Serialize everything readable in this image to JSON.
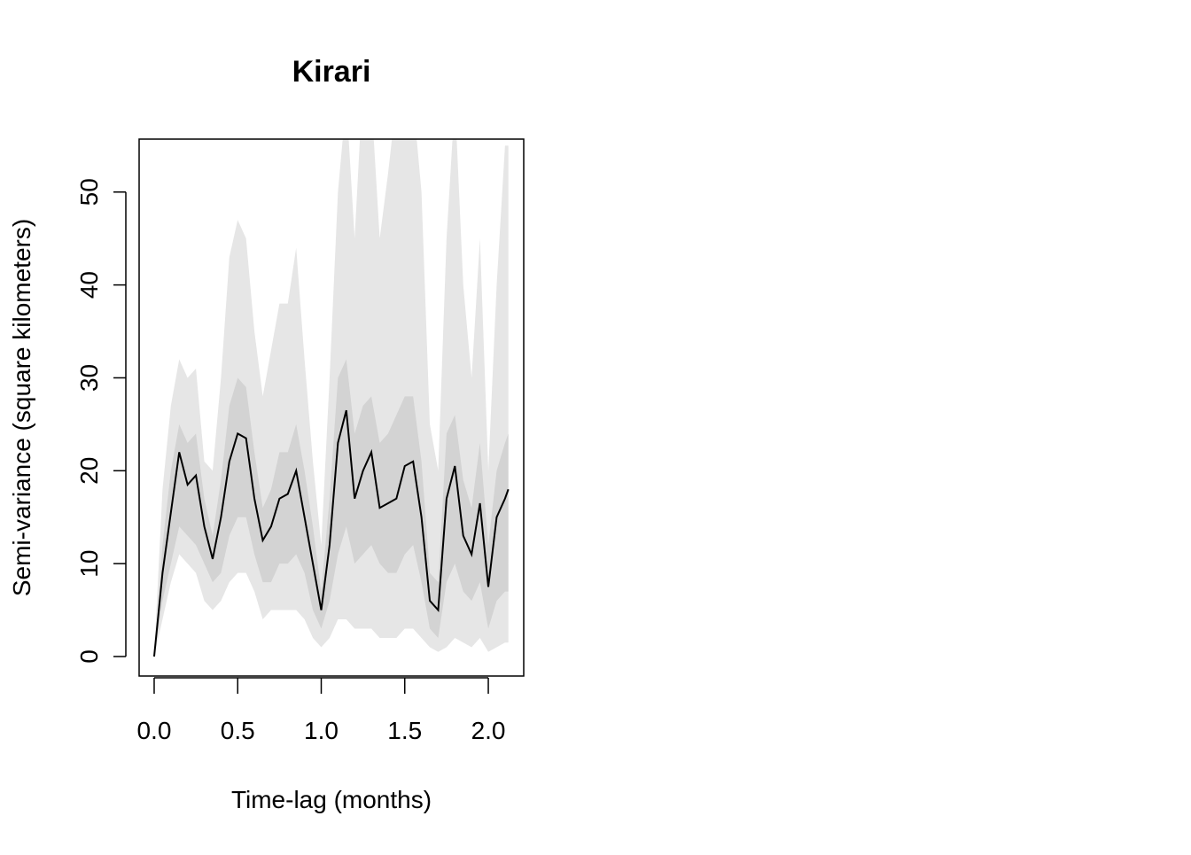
{
  "chart_data": {
    "type": "line",
    "title": "Kirari",
    "x_label": "Time-lag (months)",
    "y_label": "Semi-variance (square kilometers)",
    "x": [
      0,
      0.05,
      0.1,
      0.15,
      0.2,
      0.25,
      0.3,
      0.35,
      0.4,
      0.45,
      0.5,
      0.55,
      0.6,
      0.65,
      0.7,
      0.75,
      0.8,
      0.85,
      0.9,
      0.95,
      1.0,
      1.05,
      1.1,
      1.15,
      1.2,
      1.25,
      1.3,
      1.35,
      1.4,
      1.45,
      1.5,
      1.55,
      1.6,
      1.65,
      1.7,
      1.75,
      1.8,
      1.85,
      1.9,
      1.95,
      2.0,
      2.05,
      2.1,
      2.12
    ],
    "values": [
      0,
      9,
      15.5,
      22,
      18.5,
      19.5,
      14,
      10.5,
      15,
      21,
      24,
      23.5,
      17,
      12.5,
      14,
      17,
      17.5,
      20,
      15,
      10,
      5,
      12,
      23,
      26.5,
      17,
      20,
      22,
      16,
      16.5,
      17,
      20.5,
      21,
      15,
      6,
      5,
      17,
      20.5,
      13,
      11,
      16.5,
      7.5,
      15,
      17,
      18
    ],
    "color": "#000000",
    "bands": [
      {
        "color": "#e6e6e6",
        "lower": [
          0,
          4,
          8,
          11,
          10,
          9,
          6,
          5,
          6,
          8,
          9,
          9,
          7,
          4,
          5,
          5,
          5,
          5,
          4,
          2,
          1,
          2,
          4,
          4,
          3,
          3,
          3,
          2,
          2,
          2,
          3,
          3,
          2,
          1,
          0.5,
          1,
          2,
          1.5,
          1,
          2,
          0.5,
          1,
          1.5,
          1.5
        ],
        "upper": [
          0,
          18,
          27,
          32,
          30,
          31,
          21,
          20,
          30,
          43,
          47,
          45,
          35,
          28,
          33,
          38,
          38,
          44,
          32,
          21,
          12,
          30,
          50,
          60,
          45,
          62,
          60,
          45,
          52,
          60,
          62,
          60,
          50,
          25,
          20,
          45,
          60,
          40,
          30,
          45,
          20,
          40,
          55,
          55
        ]
      },
      {
        "color": "#d3d3d3",
        "lower": [
          0,
          6,
          10,
          14,
          13,
          12,
          10,
          8,
          9,
          13,
          15,
          15,
          11,
          8,
          8,
          10,
          10,
          11,
          9,
          5,
          3,
          6,
          11,
          14,
          10,
          11,
          12,
          10,
          9,
          9,
          11,
          12,
          8,
          3,
          2,
          8,
          10,
          7,
          6,
          8,
          3,
          6,
          7,
          7
        ],
        "upper": [
          0,
          12,
          20,
          25,
          23,
          24,
          17,
          13,
          19,
          27,
          30,
          29,
          22,
          16,
          18,
          22,
          22,
          25,
          20,
          14,
          7,
          17,
          30,
          32,
          24,
          27,
          28,
          23,
          24,
          26,
          28,
          28,
          21,
          9,
          8,
          24,
          26,
          19,
          16,
          23,
          12,
          20,
          23,
          24
        ]
      }
    ],
    "xlim": [
      -0.09,
      2.212
    ],
    "ylim": [
      -2.1,
      55.7
    ],
    "xticks": [
      {
        "value": 0,
        "label": "0.0"
      },
      0.5,
      {
        "value": 1,
        "label": "1.0"
      },
      1.5,
      {
        "value": 2,
        "label": "2.0"
      }
    ],
    "yticks": [
      0,
      10,
      20,
      30,
      40,
      50
    ]
  }
}
